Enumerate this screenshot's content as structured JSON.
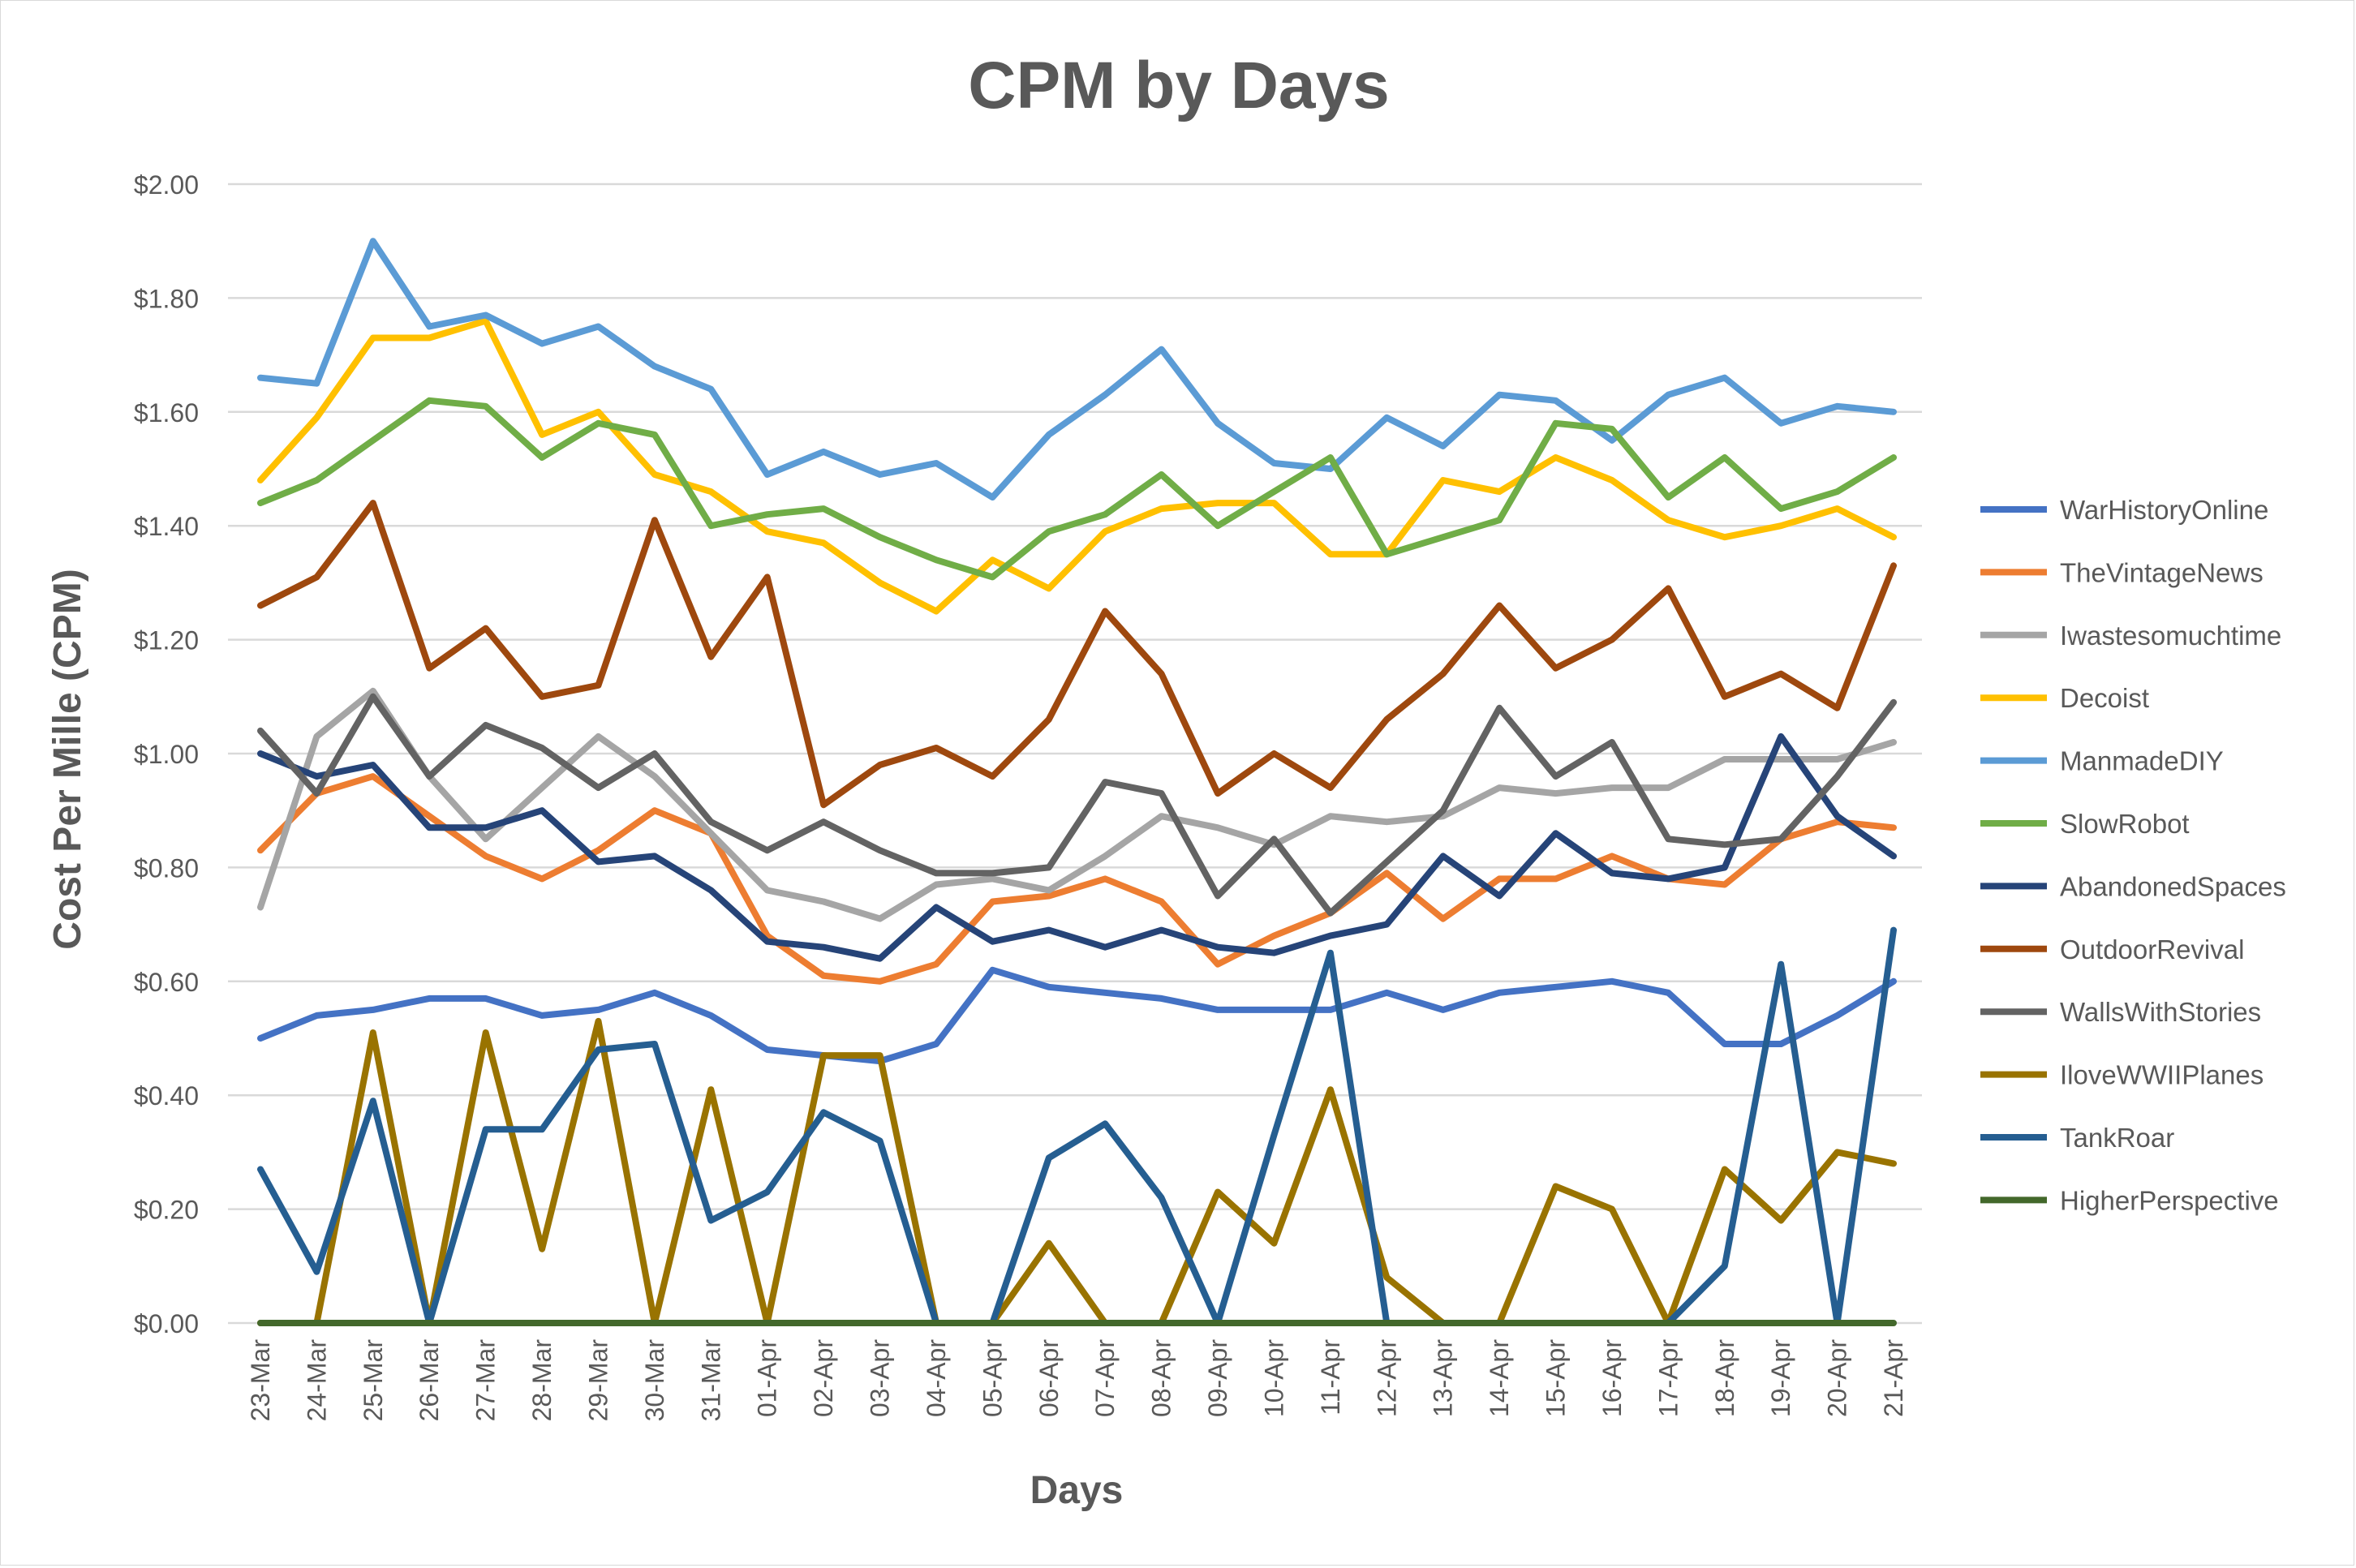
{
  "chart_data": {
    "type": "line",
    "title": "CPM by Days",
    "xlabel": "Days",
    "ylabel": "Cost Per Mille (CPM)",
    "ylim": [
      0,
      2
    ],
    "yticks": [
      0,
      0.2,
      0.4,
      0.6,
      0.8,
      1.0,
      1.2,
      1.4,
      1.6,
      1.8,
      2.0
    ],
    "ytick_format": "currency_2dp",
    "grid": true,
    "legend_position": "right",
    "categories": [
      "23-Mar",
      "24-Mar",
      "25-Mar",
      "26-Mar",
      "27-Mar",
      "28-Mar",
      "29-Mar",
      "30-Mar",
      "31-Mar",
      "01-Apr",
      "02-Apr",
      "03-Apr",
      "04-Apr",
      "05-Apr",
      "06-Apr",
      "07-Apr",
      "08-Apr",
      "09-Apr",
      "10-Apr",
      "11-Apr",
      "12-Apr",
      "13-Apr",
      "14-Apr",
      "15-Apr",
      "16-Apr",
      "17-Apr",
      "18-Apr",
      "19-Apr",
      "20-Apr",
      "21-Apr"
    ],
    "series": [
      {
        "name": "WarHistoryOnline",
        "color": "#4472C4",
        "values": [
          0.5,
          0.54,
          0.55,
          0.57,
          0.57,
          0.54,
          0.55,
          0.58,
          0.54,
          0.48,
          0.47,
          0.46,
          0.49,
          0.62,
          0.59,
          0.58,
          0.57,
          0.55,
          0.55,
          0.55,
          0.58,
          0.55,
          0.58,
          0.59,
          0.6,
          0.58,
          0.49,
          0.49,
          0.54,
          0.6
        ]
      },
      {
        "name": "TheVintageNews",
        "color": "#ED7D31",
        "values": [
          0.83,
          0.93,
          0.96,
          0.89,
          0.82,
          0.78,
          0.83,
          0.9,
          0.86,
          0.68,
          0.61,
          0.6,
          0.63,
          0.74,
          0.75,
          0.78,
          0.74,
          0.63,
          0.68,
          0.72,
          0.79,
          0.71,
          0.78,
          0.78,
          0.82,
          0.78,
          0.77,
          0.85,
          0.88,
          0.87
        ]
      },
      {
        "name": "Iwastesomuchtime",
        "color": "#A5A5A5",
        "values": [
          0.73,
          1.03,
          1.11,
          0.96,
          0.85,
          0.94,
          1.03,
          0.96,
          0.86,
          0.76,
          0.74,
          0.71,
          0.77,
          0.78,
          0.76,
          0.82,
          0.89,
          0.87,
          0.84,
          0.89,
          0.88,
          0.89,
          0.94,
          0.93,
          0.94,
          0.94,
          0.99,
          0.99,
          0.99,
          1.02
        ]
      },
      {
        "name": "Decoist",
        "color": "#FFC000",
        "values": [
          1.48,
          1.59,
          1.73,
          1.73,
          1.76,
          1.56,
          1.6,
          1.49,
          1.46,
          1.39,
          1.37,
          1.3,
          1.25,
          1.34,
          1.29,
          1.39,
          1.43,
          1.44,
          1.44,
          1.35,
          1.35,
          1.48,
          1.46,
          1.52,
          1.48,
          1.41,
          1.38,
          1.4,
          1.43,
          1.38
        ]
      },
      {
        "name": "ManmadeDIY",
        "color": "#5B9BD5",
        "values": [
          1.66,
          1.65,
          1.9,
          1.75,
          1.77,
          1.72,
          1.75,
          1.68,
          1.64,
          1.49,
          1.53,
          1.49,
          1.51,
          1.45,
          1.56,
          1.63,
          1.71,
          1.58,
          1.51,
          1.5,
          1.59,
          1.54,
          1.63,
          1.62,
          1.55,
          1.63,
          1.66,
          1.58,
          1.61,
          1.6
        ]
      },
      {
        "name": "SlowRobot",
        "color": "#70AD47",
        "values": [
          1.44,
          1.48,
          1.55,
          1.62,
          1.61,
          1.52,
          1.58,
          1.56,
          1.4,
          1.42,
          1.43,
          1.38,
          1.34,
          1.31,
          1.39,
          1.42,
          1.49,
          1.4,
          1.46,
          1.52,
          1.35,
          1.38,
          1.41,
          1.58,
          1.57,
          1.45,
          1.52,
          1.43,
          1.46,
          1.52
        ]
      },
      {
        "name": "AbandonedSpaces",
        "color": "#264478",
        "values": [
          1.0,
          0.96,
          0.98,
          0.87,
          0.87,
          0.9,
          0.81,
          0.82,
          0.76,
          0.67,
          0.66,
          0.64,
          0.73,
          0.67,
          0.69,
          0.66,
          0.69,
          0.66,
          0.65,
          0.68,
          0.7,
          0.82,
          0.75,
          0.86,
          0.79,
          0.78,
          0.8,
          1.03,
          0.89,
          0.82
        ]
      },
      {
        "name": "OutdoorRevival",
        "color": "#9E480E",
        "values": [
          1.26,
          1.31,
          1.44,
          1.15,
          1.22,
          1.1,
          1.12,
          1.41,
          1.17,
          1.31,
          0.91,
          0.98,
          1.01,
          0.96,
          1.06,
          1.25,
          1.14,
          0.93,
          1.0,
          0.94,
          1.06,
          1.14,
          1.26,
          1.15,
          1.2,
          1.29,
          1.1,
          1.14,
          1.08,
          1.33
        ]
      },
      {
        "name": "WallsWithStories",
        "color": "#636363",
        "values": [
          1.04,
          0.93,
          1.1,
          0.96,
          1.05,
          1.01,
          0.94,
          1.0,
          0.88,
          0.83,
          0.88,
          0.83,
          0.79,
          0.79,
          0.8,
          0.95,
          0.93,
          0.75,
          0.85,
          0.72,
          0.81,
          0.9,
          1.08,
          0.96,
          1.02,
          0.85,
          0.84,
          0.85,
          0.96,
          1.09
        ]
      },
      {
        "name": "IloveWWIIPlanes",
        "color": "#997300",
        "values": [
          0,
          0,
          0.51,
          0,
          0.51,
          0.13,
          0.53,
          0,
          0.41,
          0,
          0.47,
          0.47,
          0,
          0,
          0.14,
          0,
          0,
          0.23,
          0.14,
          0.41,
          0.08,
          0,
          0,
          0.24,
          0.2,
          0,
          0.27,
          0.18,
          0.3,
          0.28
        ]
      },
      {
        "name": "TankRoar",
        "color": "#255E91",
        "values": [
          0.27,
          0.09,
          0.39,
          0,
          0.34,
          0.34,
          0.48,
          0.49,
          0.18,
          0.23,
          0.37,
          0.32,
          0,
          0,
          0.29,
          0.35,
          0.22,
          0,
          0.33,
          0.65,
          0,
          0,
          0,
          0,
          0,
          0,
          0.1,
          0.63,
          0,
          0.69
        ]
      },
      {
        "name": "HigherPerspective",
        "color": "#43682B",
        "values": [
          0,
          0,
          0,
          0,
          0,
          0,
          0,
          0,
          0,
          0,
          0,
          0,
          0,
          0,
          0,
          0,
          0,
          0,
          0,
          0,
          0,
          0,
          0,
          0,
          0,
          0,
          0,
          0,
          0,
          0
        ]
      }
    ]
  }
}
